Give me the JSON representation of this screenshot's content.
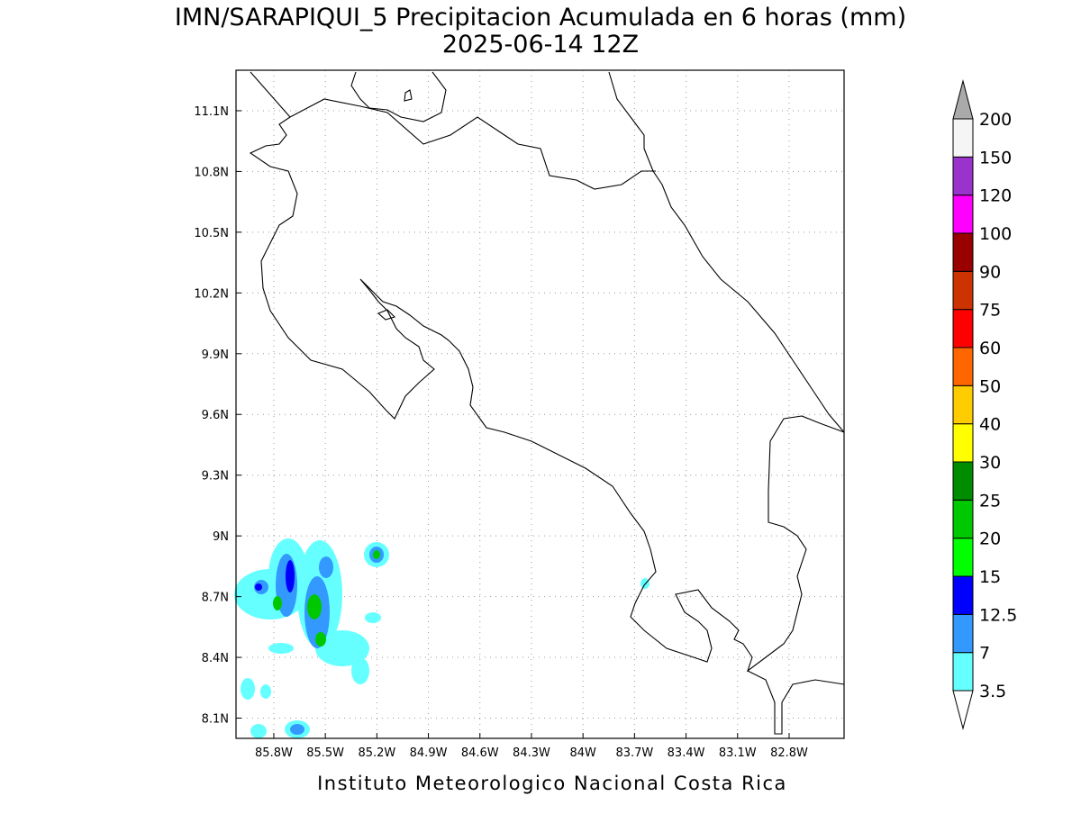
{
  "title": "IMN/SARAPIQUI_5 Precipitacion Acumulada en 6 horas (mm)",
  "subtitle": "2025-06-14 12Z",
  "footer": "Instituto Meteorologico Nacional Costa Rica",
  "map": {
    "xlim": [
      -86.02,
      -82.48
    ],
    "ylim": [
      8.0,
      11.3
    ],
    "xticks": [
      {
        "value": -85.8,
        "label": "85.8W"
      },
      {
        "value": -85.5,
        "label": "85.5W"
      },
      {
        "value": -85.2,
        "label": "85.2W"
      },
      {
        "value": -84.9,
        "label": "84.9W"
      },
      {
        "value": -84.6,
        "label": "84.6W"
      },
      {
        "value": -84.3,
        "label": "84.3W"
      },
      {
        "value": -84,
        "label": "84W"
      },
      {
        "value": -83.7,
        "label": "83.7W"
      },
      {
        "value": -83.4,
        "label": "83.4W"
      },
      {
        "value": -83.1,
        "label": "83.1W"
      },
      {
        "value": -82.8,
        "label": "82.8W"
      }
    ],
    "yticks": [
      {
        "value": 8.1,
        "label": "8.1N"
      },
      {
        "value": 8.4,
        "label": "8.4N"
      },
      {
        "value": 8.7,
        "label": "8.7N"
      },
      {
        "value": 9,
        "label": "9N"
      },
      {
        "value": 9.3,
        "label": "9.3N"
      },
      {
        "value": 9.6,
        "label": "9.6N"
      },
      {
        "value": 9.9,
        "label": "9.9N"
      },
      {
        "value": 10.2,
        "label": "10.2N"
      },
      {
        "value": 10.5,
        "label": "10.5N"
      },
      {
        "value": 10.8,
        "label": "10.8N"
      },
      {
        "value": 11.1,
        "label": "11.1N"
      }
    ],
    "grid": true
  },
  "colorbar": {
    "levels": [
      3.5,
      7,
      12.5,
      15,
      20,
      25,
      30,
      40,
      50,
      60,
      75,
      90,
      100,
      120,
      150,
      200
    ],
    "colors": [
      "#ffffff",
      "#66ffff",
      "#3399ff",
      "#0000ff",
      "#00ff00",
      "#00c800",
      "#008c00",
      "#ffff00",
      "#ffcc00",
      "#ff6600",
      "#ff0000",
      "#cc3300",
      "#990000",
      "#ff00ff",
      "#9933cc",
      "#f5f5f5",
      "#aaaaaa"
    ]
  }
}
